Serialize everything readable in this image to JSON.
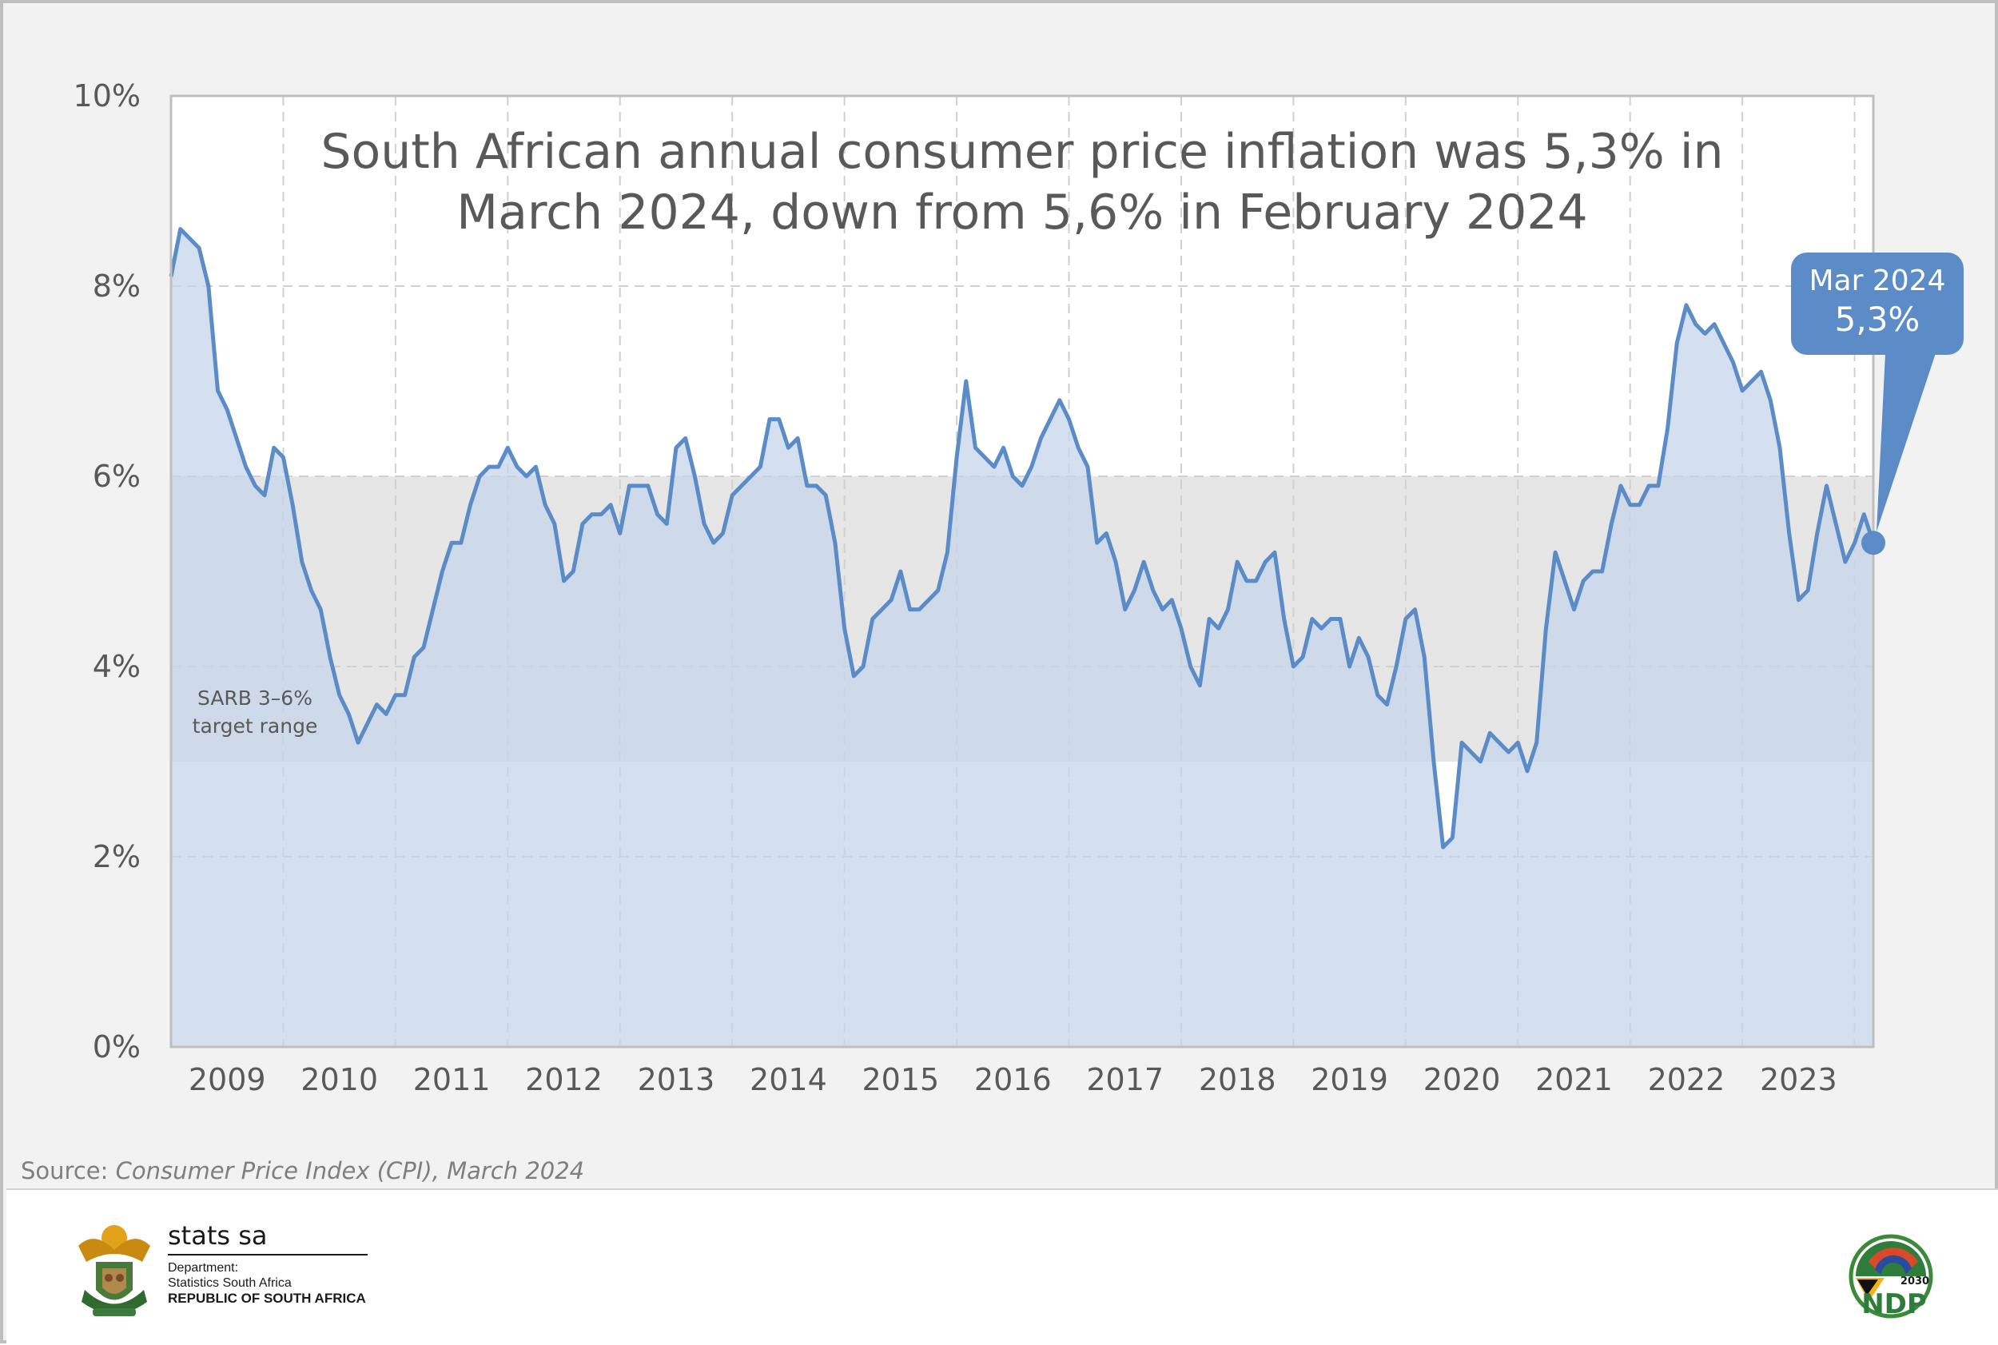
{
  "chart_data": {
    "type": "area",
    "title": [
      "South African annual consumer price inflation was 5,3% in",
      "March 2024, down from 5,6% in February 2024"
    ],
    "xlabel": "",
    "ylabel": "",
    "ylim": [
      0,
      10
    ],
    "y_ticks": [
      "0%",
      "2%",
      "4%",
      "6%",
      "8%",
      "10%"
    ],
    "x_ticks": [
      "2009",
      "2010",
      "2011",
      "2012",
      "2013",
      "2014",
      "2015",
      "2016",
      "2017",
      "2018",
      "2019",
      "2020",
      "2021",
      "2022",
      "2023"
    ],
    "x_start": "2009-01",
    "x_end": "2024-03",
    "grid": true,
    "target_range": {
      "low": 3,
      "high": 6,
      "label": [
        "SARB 3–6%",
        "target range"
      ]
    },
    "callout": {
      "date": "Mar 2024",
      "value": "5,3%"
    },
    "colors": {
      "line": "#5b8cc8",
      "fill": "#c5d6ea",
      "band": "#e6e6e6",
      "callout": "#5b8cc8"
    },
    "series": [
      {
        "values": [
          8.1,
          8.6,
          8.5,
          8.4,
          8.0,
          6.9,
          6.7,
          6.4,
          6.1,
          5.9,
          5.8,
          6.3,
          6.2,
          5.7,
          5.1,
          4.8,
          4.6,
          4.1,
          3.7,
          3.5,
          3.2,
          3.4,
          3.6,
          3.5,
          3.7,
          3.7,
          4.1,
          4.2,
          4.6,
          5.0,
          5.3,
          5.3,
          5.7,
          6.0,
          6.1,
          6.1,
          6.3,
          6.1,
          6.0,
          6.1,
          5.7,
          5.5,
          4.9,
          5.0,
          5.5,
          5.6,
          5.6,
          5.7,
          5.4,
          5.9,
          5.9,
          5.9,
          5.6,
          5.5,
          6.3,
          6.4,
          6.0,
          5.5,
          5.3,
          5.4,
          5.8,
          5.9,
          6.0,
          6.1,
          6.6,
          6.6,
          6.3,
          6.4,
          5.9,
          5.9,
          5.8,
          5.3,
          4.4,
          3.9,
          4.0,
          4.5,
          4.6,
          4.7,
          5.0,
          4.6,
          4.6,
          4.7,
          4.8,
          5.2,
          6.2,
          7.0,
          6.3,
          6.2,
          6.1,
          6.3,
          6.0,
          5.9,
          6.1,
          6.4,
          6.6,
          6.8,
          6.6,
          6.3,
          6.1,
          5.3,
          5.4,
          5.1,
          4.6,
          4.8,
          5.1,
          4.8,
          4.6,
          4.7,
          4.4,
          4.0,
          3.8,
          4.5,
          4.4,
          4.6,
          5.1,
          4.9,
          4.9,
          5.1,
          5.2,
          4.5,
          4.0,
          4.1,
          4.5,
          4.4,
          4.5,
          4.5,
          4.0,
          4.3,
          4.1,
          3.7,
          3.6,
          4.0,
          4.5,
          4.6,
          4.1,
          3.0,
          2.1,
          2.2,
          3.2,
          3.1,
          3.0,
          3.3,
          3.2,
          3.1,
          3.2,
          2.9,
          3.2,
          4.4,
          5.2,
          4.9,
          4.6,
          4.9,
          5.0,
          5.0,
          5.5,
          5.9,
          5.7,
          5.7,
          5.9,
          5.9,
          6.5,
          7.4,
          7.8,
          7.6,
          7.5,
          7.6,
          7.4,
          7.2,
          6.9,
          7.0,
          7.1,
          6.8,
          6.3,
          5.4,
          4.7,
          4.8,
          5.4,
          5.9,
          5.5,
          5.1,
          5.3,
          5.6,
          5.3
        ]
      }
    ]
  },
  "source": {
    "prefix": "Source: ",
    "title": "Consumer Price Index (CPI), March 2024"
  },
  "footer": {
    "org_name": "stats sa",
    "dept_lines": [
      "Department:",
      "Statistics South Africa",
      "REPUBLIC OF SOUTH AFRICA"
    ],
    "ndp_text": "NDP",
    "ndp_year": "2030"
  }
}
